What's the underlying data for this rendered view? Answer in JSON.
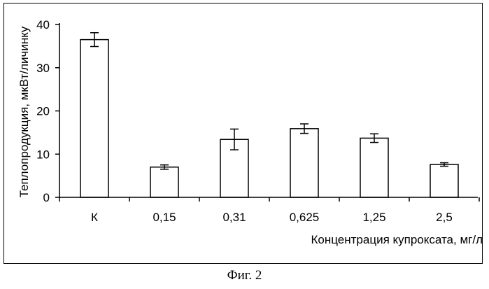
{
  "chart_data": {
    "type": "bar",
    "categories": [
      "К",
      "0,15",
      "0,31",
      "0,625",
      "1,25",
      "2,5"
    ],
    "values": [
      36.5,
      7.0,
      13.4,
      15.9,
      13.7,
      7.6
    ],
    "errors": [
      1.6,
      0.5,
      2.4,
      1.1,
      1.0,
      0.4
    ],
    "xlabel": "Концентрация купроксата, мг/л",
    "ylabel": "Теплопродукция, мкВт/личинку",
    "ylim": [
      0,
      40
    ],
    "yticks": [
      0,
      10,
      20,
      30,
      40
    ],
    "grid": false,
    "bar_fill": "#ffffff",
    "bar_stroke": "#000000"
  },
  "caption": "Фиг. 2"
}
